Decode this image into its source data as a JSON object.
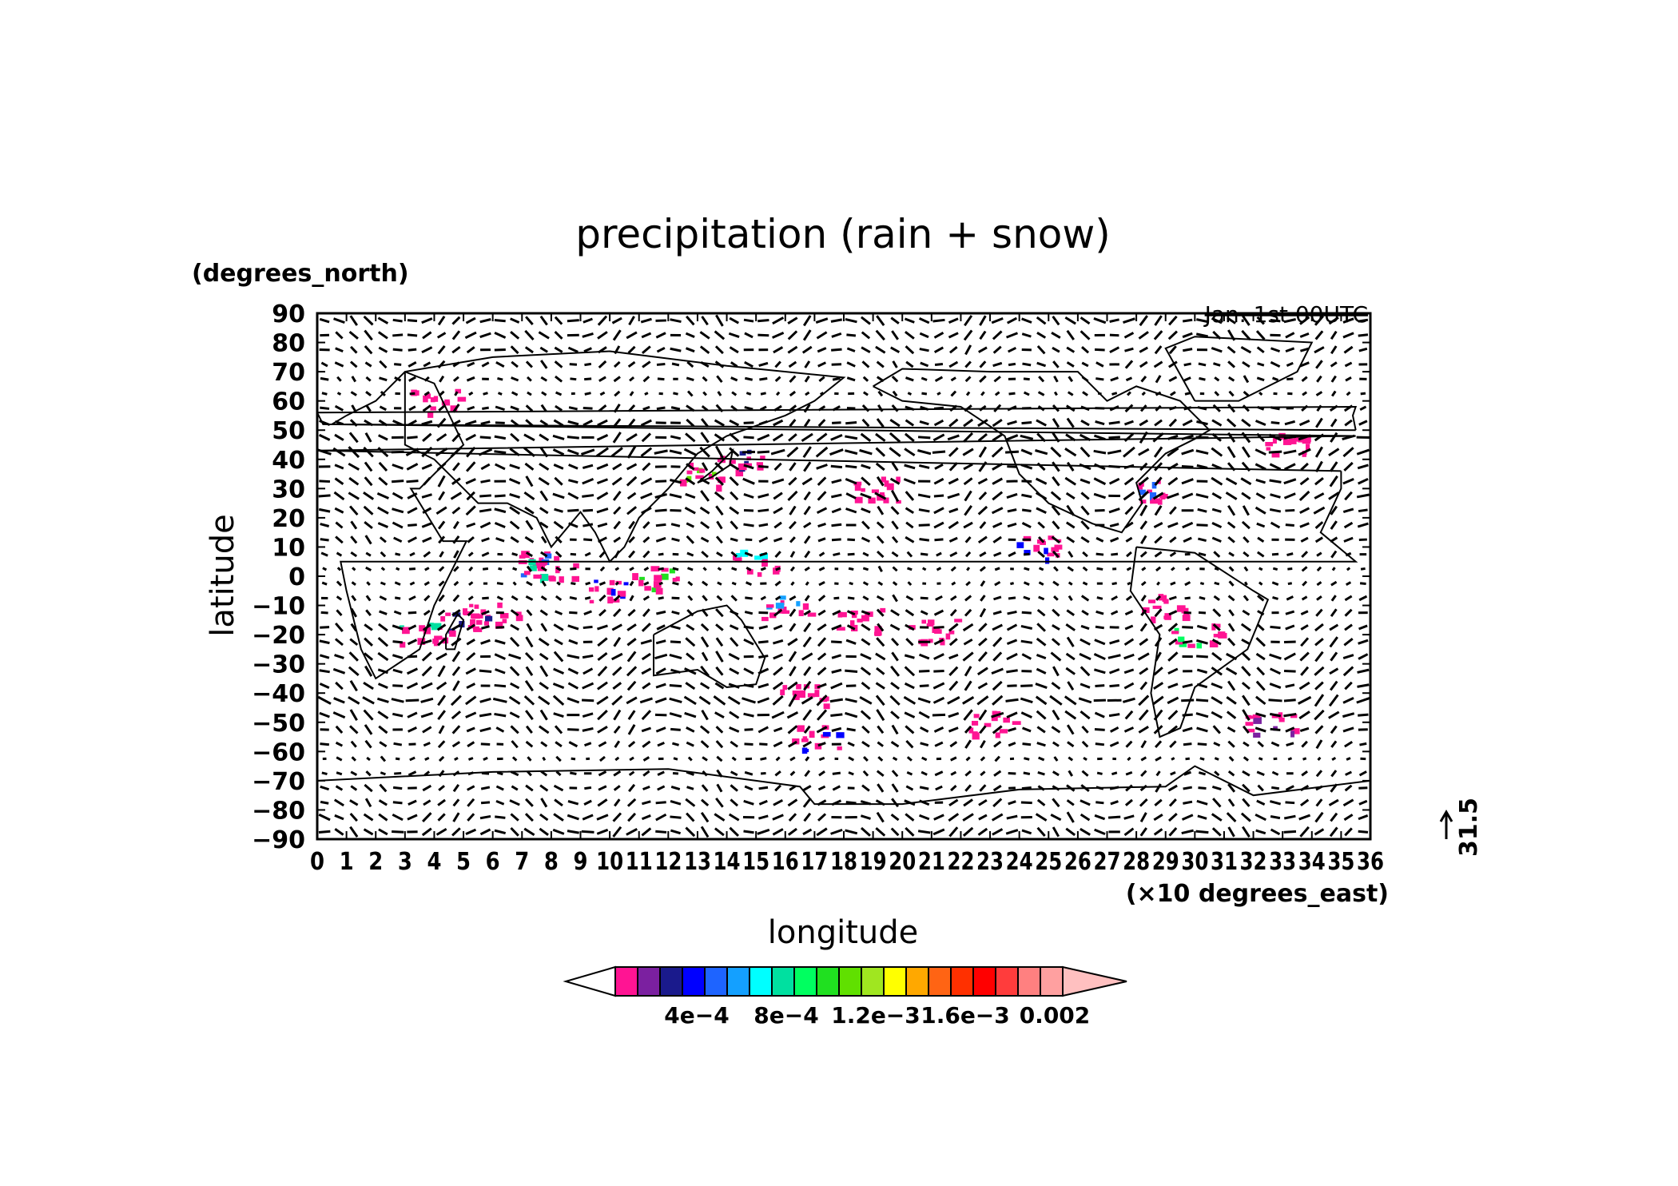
{
  "title": "precipitation (rain + snow)",
  "annotation": "Jan. 1st 00UTC",
  "y_axis": {
    "unit_label": "(degrees_north)",
    "label": "latitude",
    "ticks": [
      "90",
      "80",
      "70",
      "60",
      "50",
      "40",
      "30",
      "20",
      "10",
      "0",
      "−10",
      "−20",
      "−30",
      "−40",
      "−50",
      "−60",
      "−70",
      "−80",
      "−90"
    ]
  },
  "x_axis": {
    "unit_label": "(×10 degrees_east)",
    "label": "longitude",
    "ticks": [
      "0",
      "1",
      "2",
      "3",
      "4",
      "5",
      "6",
      "7",
      "8",
      "9",
      "10",
      "11",
      "12",
      "13",
      "14",
      "15",
      "16",
      "17",
      "18",
      "19",
      "20",
      "21",
      "22",
      "23",
      "24",
      "25",
      "26",
      "27",
      "28",
      "29",
      "30",
      "31",
      "32",
      "33",
      "34",
      "35",
      "36"
    ]
  },
  "vector_reference": {
    "value": "31.5"
  },
  "colorbar": {
    "under_color": "#ffffff",
    "over_color": "#ffc0c0",
    "colors": [
      "#ff1493",
      "#7b20a0",
      "#1a1a8c",
      "#0000ff",
      "#1e64ff",
      "#14a0ff",
      "#00ffff",
      "#00e0a0",
      "#00ff60",
      "#20e020",
      "#60e000",
      "#a0e620",
      "#ffff00",
      "#ffa800",
      "#ff6414",
      "#ff3000",
      "#ff0000",
      "#ff3c3c",
      "#ff8080",
      "#ffa0a0"
    ],
    "tick_labels": [
      "4e−4",
      "8e−4",
      "1.2e−3",
      "1.6e−3",
      "0.002"
    ]
  },
  "precip_patches": [
    {
      "lon": 75,
      "lat": 5,
      "c": 4
    },
    {
      "lon": 80,
      "lat": 3,
      "c": 7
    },
    {
      "lon": 100,
      "lat": -5,
      "c": 3
    },
    {
      "lon": 115,
      "lat": 0,
      "c": 9
    },
    {
      "lon": 130,
      "lat": 35,
      "c": 10
    },
    {
      "lon": 145,
      "lat": 40,
      "c": 2
    },
    {
      "lon": 150,
      "lat": 5,
      "c": 6
    },
    {
      "lon": 160,
      "lat": -10,
      "c": 5
    },
    {
      "lon": 170,
      "lat": -55,
      "c": 3
    },
    {
      "lon": 185,
      "lat": -15,
      "c": 0
    },
    {
      "lon": 190,
      "lat": 30,
      "c": 0
    },
    {
      "lon": 210,
      "lat": -18,
      "c": 0
    },
    {
      "lon": 245,
      "lat": 10,
      "c": 3
    },
    {
      "lon": 285,
      "lat": 30,
      "c": 4
    },
    {
      "lon": 290,
      "lat": -10,
      "c": 0
    },
    {
      "lon": 300,
      "lat": -20,
      "c": 8
    },
    {
      "lon": 330,
      "lat": 45,
      "c": 0
    },
    {
      "lon": 50,
      "lat": -15,
      "c": 2
    },
    {
      "lon": 35,
      "lat": -20,
      "c": 7
    },
    {
      "lon": 60,
      "lat": -12,
      "c": 0
    },
    {
      "lon": 325,
      "lat": -50,
      "c": 1
    },
    {
      "lon": 40,
      "lat": 60,
      "c": 0
    },
    {
      "lon": 165,
      "lat": -40,
      "c": 0
    },
    {
      "lon": 230,
      "lat": -50,
      "c": 0
    }
  ]
}
